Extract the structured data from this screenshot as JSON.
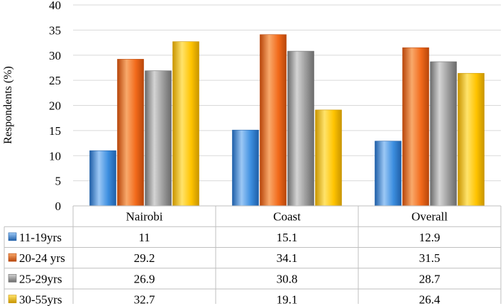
{
  "chart_data": {
    "type": "bar",
    "title": "",
    "xlabel": "",
    "ylabel": "Respondents (%)",
    "ylim": [
      0,
      40
    ],
    "yticks": [
      0,
      5,
      10,
      15,
      20,
      25,
      30,
      35,
      40
    ],
    "categories": [
      "Nairobi",
      "Coast",
      "Overall"
    ],
    "series": [
      {
        "name": "11-19yrs",
        "values": [
          11,
          15.1,
          12.9
        ],
        "value_labels": [
          "11",
          "15.1",
          "12.9"
        ],
        "color": "#3d8fe0",
        "color_light": "#9cc8f5",
        "color_dark": "#1f5fa8"
      },
      {
        "name": "20-24 yrs",
        "values": [
          29.2,
          34.1,
          31.5
        ],
        "value_labels": [
          "29.2",
          "34.1",
          "31.5"
        ],
        "color": "#f26a1b",
        "color_light": "#f9a96b",
        "color_dark": "#b8460a"
      },
      {
        "name": "25-29yrs",
        "values": [
          26.9,
          30.8,
          28.7
        ],
        "value_labels": [
          "26.9",
          "30.8",
          "28.7"
        ],
        "color": "#9a9a9a",
        "color_light": "#d4d4d4",
        "color_dark": "#6b6b6b"
      },
      {
        "name": "30-55yrs",
        "values": [
          32.7,
          19.1,
          26.4
        ],
        "value_labels": [
          "32.7",
          "19.1",
          "26.4"
        ],
        "color": "#ffc400",
        "color_light": "#ffe36b",
        "color_dark": "#c99500"
      }
    ],
    "grid": true,
    "legend": "data-table"
  }
}
